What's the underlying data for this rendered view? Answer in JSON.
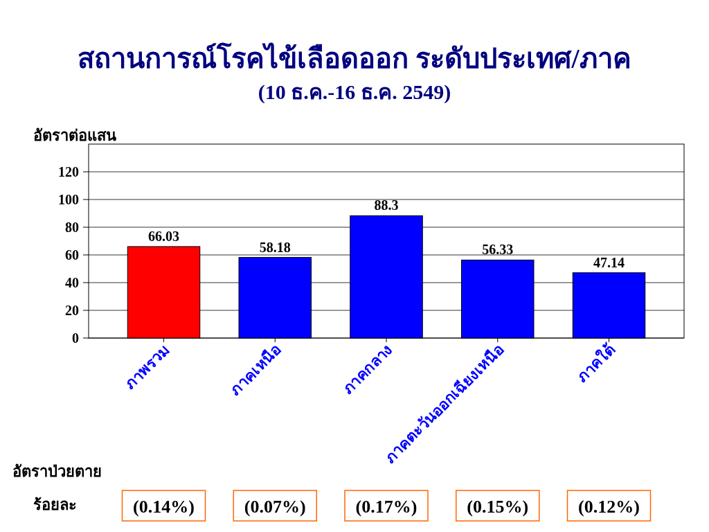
{
  "chart_data": {
    "type": "bar",
    "title": "สถานการณ์โรคไข้เลือดออก ระดับประเทศ/ภาค",
    "subtitle": "(10 ธ.ค.-16 ธ.ค. 2549)",
    "ylabel": "อัตราต่อแสน",
    "categories": [
      "ภาพรวม",
      "ภาคเหนือ",
      "ภาคกลาง",
      "ภาคตะวันออกเฉียงเหนือ",
      "ภาคใต้"
    ],
    "values": [
      66.03,
      58.18,
      88.3,
      56.33,
      47.14
    ],
    "colors": [
      "#ff0000",
      "#0000ff",
      "#0000ff",
      "#0000ff",
      "#0000ff"
    ],
    "ylim": [
      0,
      140
    ],
    "yticks": [
      0,
      20,
      40,
      60,
      80,
      100,
      120
    ],
    "grid": "y",
    "data_labels": true,
    "annotations": [
      "อัตราป่วยตาย",
      "ร้อยละ",
      "(0.14%)",
      "(0.07%)",
      "(0.17%)",
      "(0.15%)",
      "(0.12%)"
    ]
  }
}
